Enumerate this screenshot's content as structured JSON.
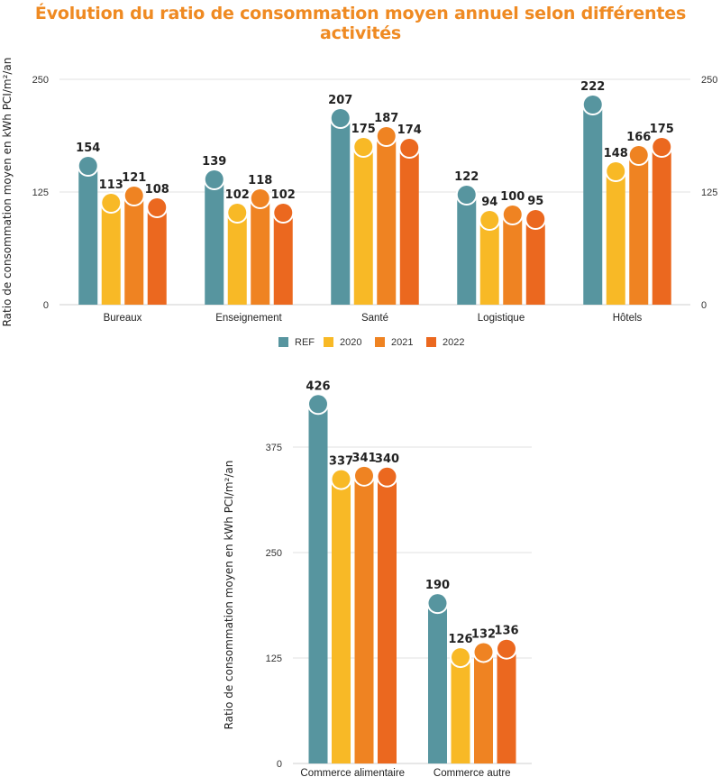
{
  "title": "Évolution du ratio de consommation moyen annuel selon différentes activités",
  "colors": {
    "REF": "#57959f",
    "2020": "#f8b926",
    "2021": "#ef8322",
    "2022": "#eb681f",
    "title": "#ef8a22"
  },
  "legend": [
    "REF",
    "2020",
    "2021",
    "2022"
  ],
  "chart_data": [
    {
      "type": "bar",
      "title": "",
      "ylabel": "Ratio de consommation moyen en kWh PCI/m²/an",
      "xlabel": "",
      "ylim": [
        0,
        250
      ],
      "yticks": [
        0,
        125,
        250
      ],
      "right_axis_ticks": [
        0,
        125,
        250
      ],
      "grid": true,
      "legend_position": "bottom",
      "categories": [
        "Bureaux",
        "Enseignement",
        "Santé",
        "Logistique",
        "Hôtels"
      ],
      "series": [
        {
          "name": "REF",
          "values": [
            154,
            139,
            207,
            122,
            222
          ]
        },
        {
          "name": "2020",
          "values": [
            113,
            102,
            175,
            94,
            148
          ]
        },
        {
          "name": "2021",
          "values": [
            121,
            118,
            187,
            100,
            166
          ]
        },
        {
          "name": "2022",
          "values": [
            108,
            102,
            174,
            95,
            175
          ]
        }
      ]
    },
    {
      "type": "bar",
      "title": "",
      "ylabel": "Ratio de consommation moyen en kWh PCI/m²/an",
      "xlabel": "",
      "ylim": [
        0,
        426
      ],
      "yticks": [
        0,
        125,
        250,
        375
      ],
      "grid": true,
      "categories": [
        "Commerce alimentaire",
        "Commerce autre"
      ],
      "series": [
        {
          "name": "REF",
          "values": [
            426,
            190
          ]
        },
        {
          "name": "2020",
          "values": [
            337,
            126
          ]
        },
        {
          "name": "2021",
          "values": [
            341,
            132
          ]
        },
        {
          "name": "2022",
          "values": [
            340,
            136
          ]
        }
      ]
    }
  ]
}
